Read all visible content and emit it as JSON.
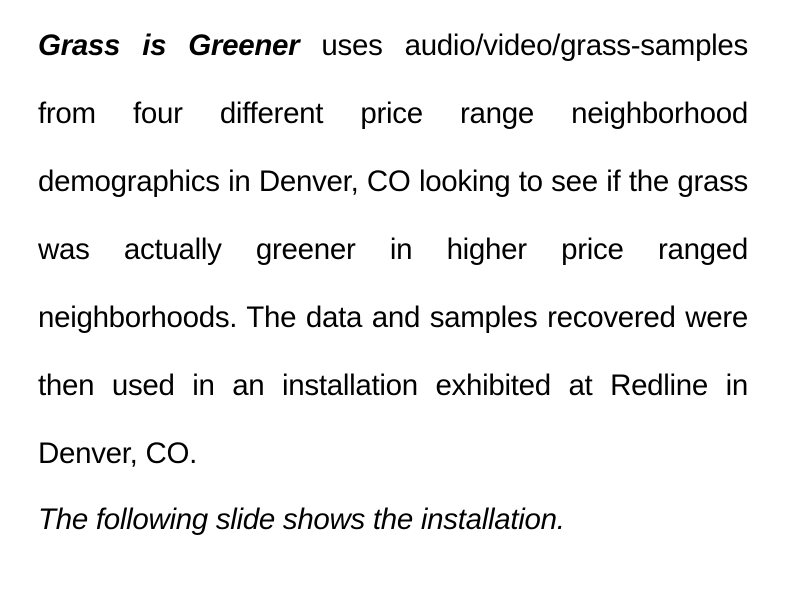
{
  "slide": {
    "project_title": "Grass is Greener",
    "description": "uses audio/video/grass-samples from four different price range neighborhood demographics in Denver, CO looking to see if the grass was actually greener in higher price ranged neighborhoods. The data and samples recovered were then used in an installation exhibited at Redline in Denver, CO.",
    "caption": "The following slide shows the installation."
  }
}
